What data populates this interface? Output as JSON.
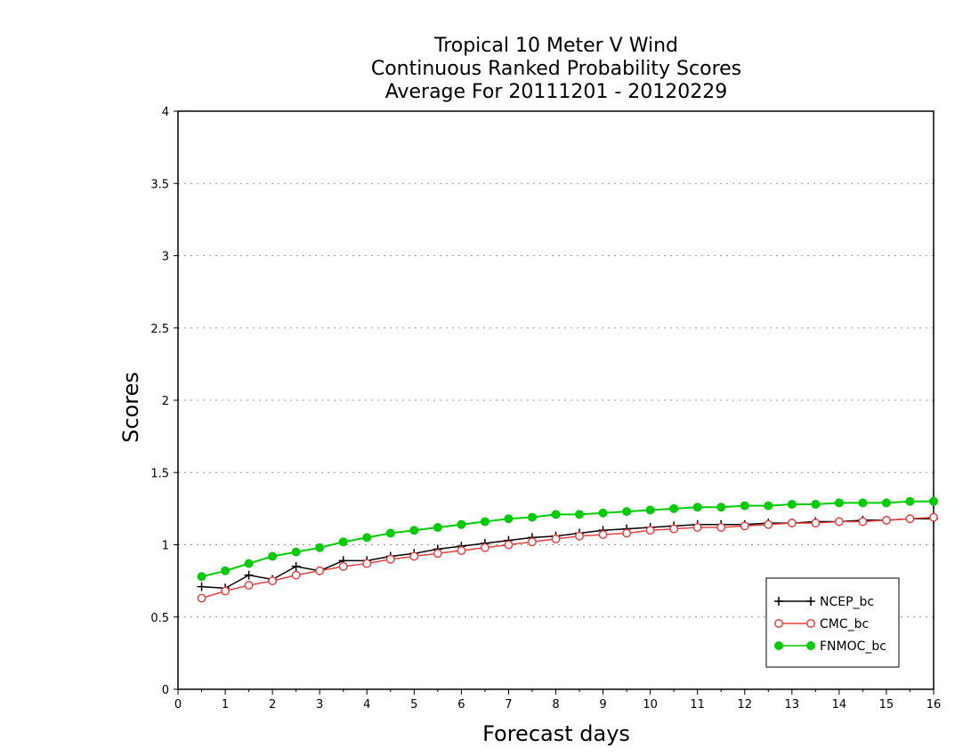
{
  "chart_data": {
    "type": "line",
    "title": [
      "Tropical 10 Meter V Wind",
      "Continuous Ranked Probability Scores",
      "Average For 20111201 - 20120229"
    ],
    "xlabel": "Forecast days",
    "ylabel": "Scores",
    "xlim": [
      0,
      16
    ],
    "ylim": [
      0,
      4
    ],
    "x_ticks": [
      "0",
      "1",
      "2",
      "3",
      "4",
      "5",
      "6",
      "7",
      "8",
      "9",
      "10",
      "11",
      "12",
      "13",
      "14",
      "15",
      "16"
    ],
    "y_ticks": [
      "0",
      "0.5",
      "1",
      "1.5",
      "2",
      "2.5",
      "3",
      "3.5",
      "4"
    ],
    "grid": "horizontal dotted",
    "legend_position": "bottom-right",
    "x": [
      0.5,
      1,
      1.5,
      2,
      2.5,
      3,
      3.5,
      4,
      4.5,
      5,
      5.5,
      6,
      6.5,
      7,
      7.5,
      8,
      8.5,
      9,
      9.5,
      10,
      10.5,
      11,
      11.5,
      12,
      12.5,
      13,
      13.5,
      14,
      14.5,
      15,
      15.5,
      16
    ],
    "series": [
      {
        "name": "NCEP_bc",
        "color": "#000000",
        "marker": "plus",
        "values": [
          0.71,
          0.7,
          0.79,
          0.76,
          0.85,
          0.82,
          0.89,
          0.89,
          0.92,
          0.94,
          0.97,
          0.99,
          1.01,
          1.03,
          1.05,
          1.06,
          1.08,
          1.1,
          1.11,
          1.12,
          1.13,
          1.14,
          1.14,
          1.14,
          1.15,
          1.15,
          1.16,
          1.16,
          1.17,
          1.17,
          1.18,
          1.18
        ]
      },
      {
        "name": "CMC_bc",
        "color": "#e84040",
        "marker": "open-circle",
        "values": [
          0.63,
          0.68,
          0.72,
          0.75,
          0.79,
          0.82,
          0.85,
          0.87,
          0.9,
          0.92,
          0.94,
          0.96,
          0.98,
          1.0,
          1.02,
          1.04,
          1.06,
          1.07,
          1.08,
          1.1,
          1.11,
          1.12,
          1.12,
          1.13,
          1.14,
          1.15,
          1.15,
          1.16,
          1.16,
          1.17,
          1.18,
          1.19
        ]
      },
      {
        "name": "FNMOC_bc",
        "color": "#00cc00",
        "marker": "filled-circle",
        "values": [
          0.78,
          0.82,
          0.87,
          0.92,
          0.95,
          0.98,
          1.02,
          1.05,
          1.08,
          1.1,
          1.12,
          1.14,
          1.16,
          1.18,
          1.19,
          1.21,
          1.21,
          1.22,
          1.23,
          1.24,
          1.25,
          1.26,
          1.26,
          1.27,
          1.27,
          1.28,
          1.28,
          1.29,
          1.29,
          1.29,
          1.3,
          1.3
        ]
      }
    ]
  }
}
